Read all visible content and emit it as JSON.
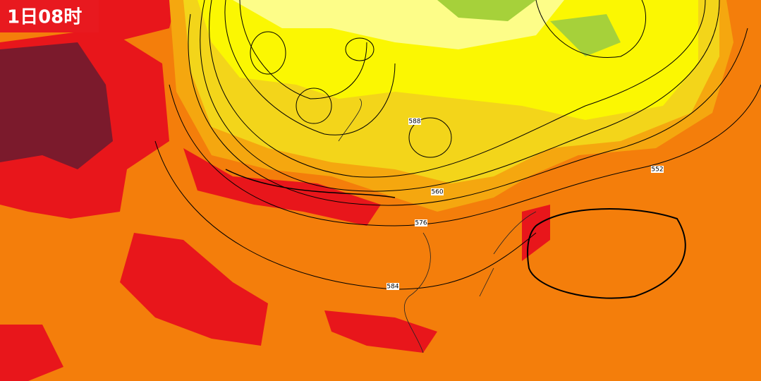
{
  "header": {
    "time_label": "1日08时"
  },
  "contours": [
    {
      "label": "576"
    },
    {
      "label": "584"
    },
    {
      "label": "552"
    },
    {
      "label": "560"
    },
    {
      "label": "588"
    }
  ]
}
